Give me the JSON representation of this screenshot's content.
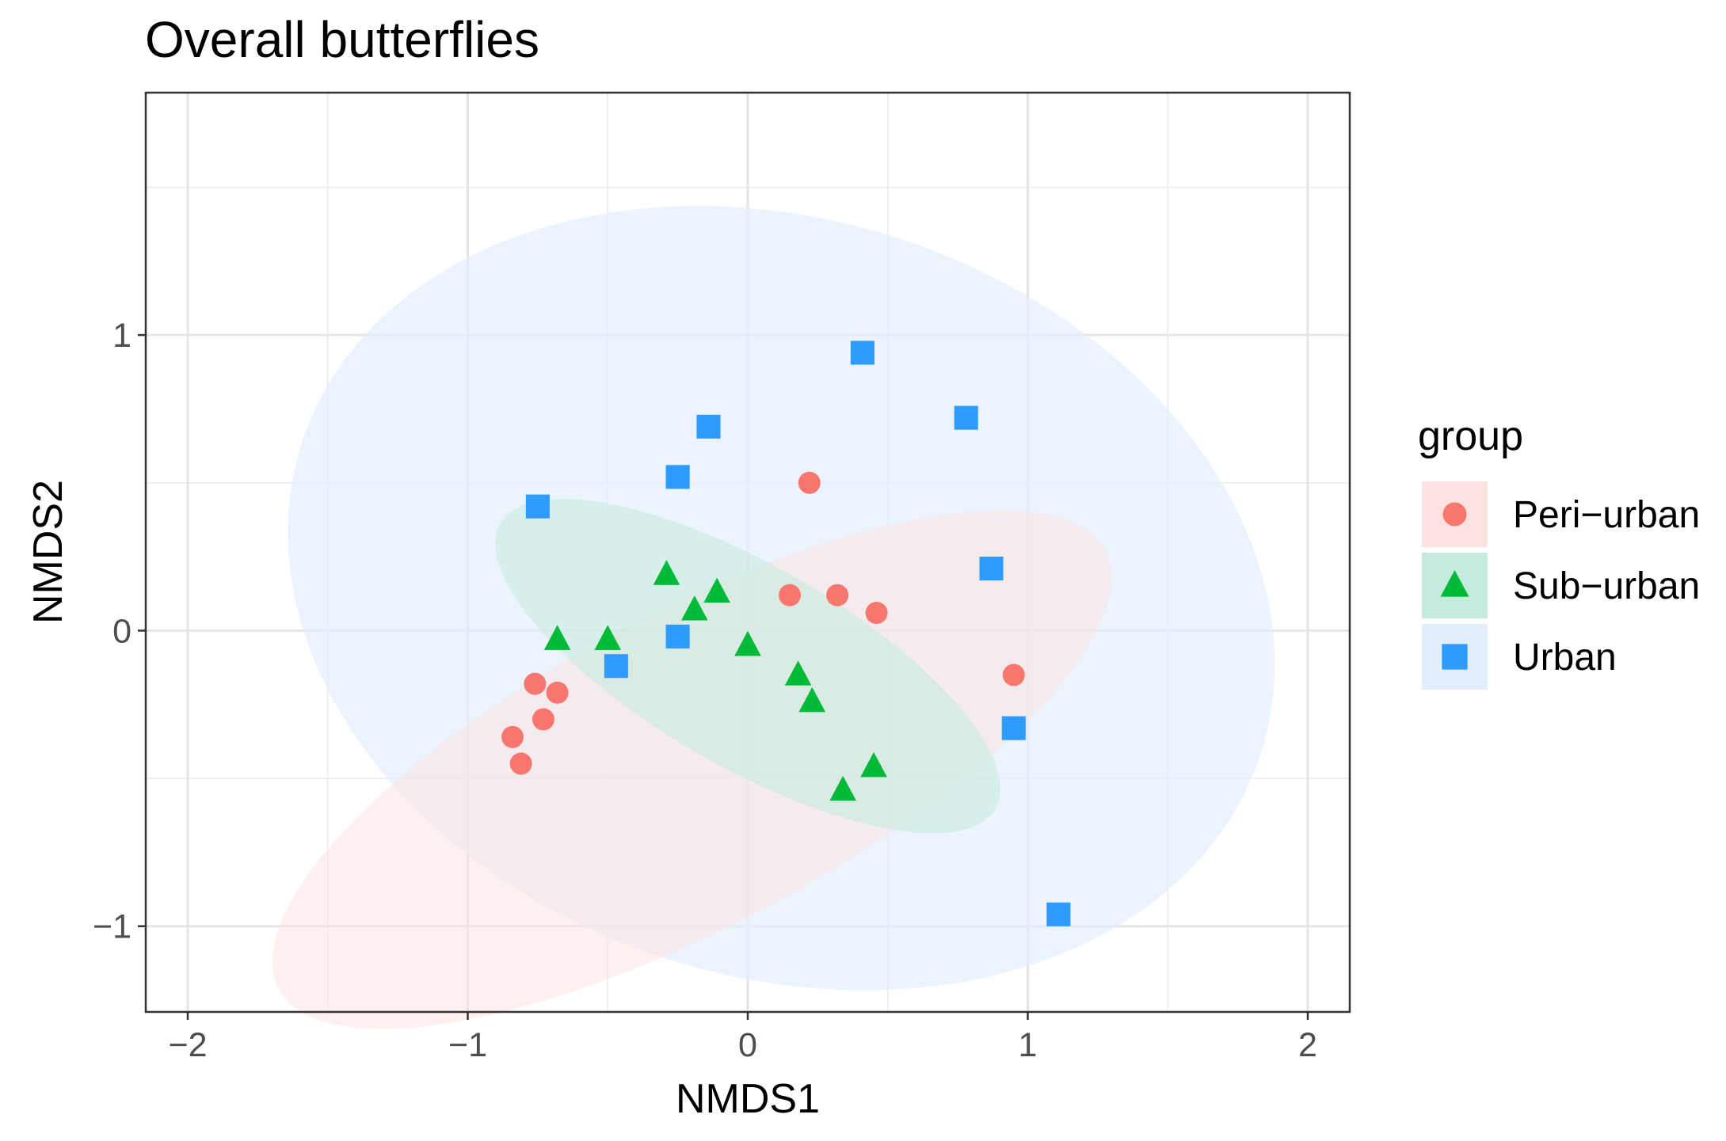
{
  "chart_data": {
    "type": "scatter",
    "title": "Overall butterflies",
    "xlabel": "NMDS1",
    "ylabel": "NMDS2",
    "xlim": [
      -2.15,
      2.15
    ],
    "ylim": [
      -1.29,
      1.82
    ],
    "x_ticks": [
      -2,
      -1,
      0,
      1,
      2
    ],
    "x_tick_labels": [
      "−2",
      "−1",
      "0",
      "1",
      "2"
    ],
    "y_ticks": [
      -1,
      0,
      1
    ],
    "y_tick_labels": [
      "−1",
      "0",
      "1"
    ],
    "grid": true,
    "legend": {
      "title": "group",
      "position": "right",
      "entries": [
        {
          "label": "Peri−urban",
          "shape": "circle",
          "color": "#F8766D"
        },
        {
          "label": "Sub−urban",
          "shape": "triangle",
          "color": "#00BA38"
        },
        {
          "label": "Urban",
          "shape": "square",
          "color": "#2F9BFF"
        }
      ]
    },
    "series": [
      {
        "name": "Peri−urban",
        "shape": "circle",
        "color": "#F8766D",
        "ellipse_fill": "#FCE3E2",
        "ellipse_opacity": 0.55,
        "ellipse": {
          "center": [
            -0.2,
            -0.47
          ],
          "semi_axes": [
            1.67,
            0.53
          ],
          "angle_deg": 28
        },
        "points": [
          {
            "x": 0.22,
            "y": 0.5
          },
          {
            "x": 0.15,
            "y": 0.12
          },
          {
            "x": 0.32,
            "y": 0.12
          },
          {
            "x": 0.46,
            "y": 0.06
          },
          {
            "x": 0.95,
            "y": -0.15
          },
          {
            "x": -0.76,
            "y": -0.18
          },
          {
            "x": -0.68,
            "y": -0.21
          },
          {
            "x": -0.73,
            "y": -0.3
          },
          {
            "x": -0.84,
            "y": -0.36
          },
          {
            "x": -0.81,
            "y": -0.45
          }
        ]
      },
      {
        "name": "Sub−urban",
        "shape": "triangle",
        "color": "#00BA38",
        "ellipse_fill": "#C4EBDD",
        "ellipse_opacity": 0.55,
        "ellipse": {
          "center": [
            0.0,
            -0.12
          ],
          "semi_axes": [
            1.02,
            0.34
          ],
          "angle_deg": -30
        },
        "points": [
          {
            "x": -0.29,
            "y": 0.19
          },
          {
            "x": -0.11,
            "y": 0.13
          },
          {
            "x": -0.19,
            "y": 0.07
          },
          {
            "x": -0.68,
            "y": -0.03
          },
          {
            "x": -0.5,
            "y": -0.03
          },
          {
            "x": 0.0,
            "y": -0.05
          },
          {
            "x": 0.18,
            "y": -0.15
          },
          {
            "x": 0.23,
            "y": -0.24
          },
          {
            "x": 0.45,
            "y": -0.46
          },
          {
            "x": 0.34,
            "y": -0.54
          }
        ]
      },
      {
        "name": "Urban",
        "shape": "square",
        "color": "#2F9BFF",
        "ellipse_fill": "#E3EEFC",
        "ellipse_opacity": 0.7,
        "ellipse": {
          "center": [
            0.12,
            0.11
          ],
          "semi_axes": [
            1.8,
            1.28
          ],
          "angle_deg": -18
        },
        "points": [
          {
            "x": 0.41,
            "y": 0.94
          },
          {
            "x": 0.78,
            "y": 0.72
          },
          {
            "x": -0.14,
            "y": 0.69
          },
          {
            "x": -0.25,
            "y": 0.52
          },
          {
            "x": -0.75,
            "y": 0.42
          },
          {
            "x": 0.87,
            "y": 0.21
          },
          {
            "x": -0.25,
            "y": -0.02
          },
          {
            "x": -0.47,
            "y": -0.12
          },
          {
            "x": 0.95,
            "y": -0.33
          },
          {
            "x": 1.11,
            "y": -0.96
          }
        ]
      }
    ]
  }
}
